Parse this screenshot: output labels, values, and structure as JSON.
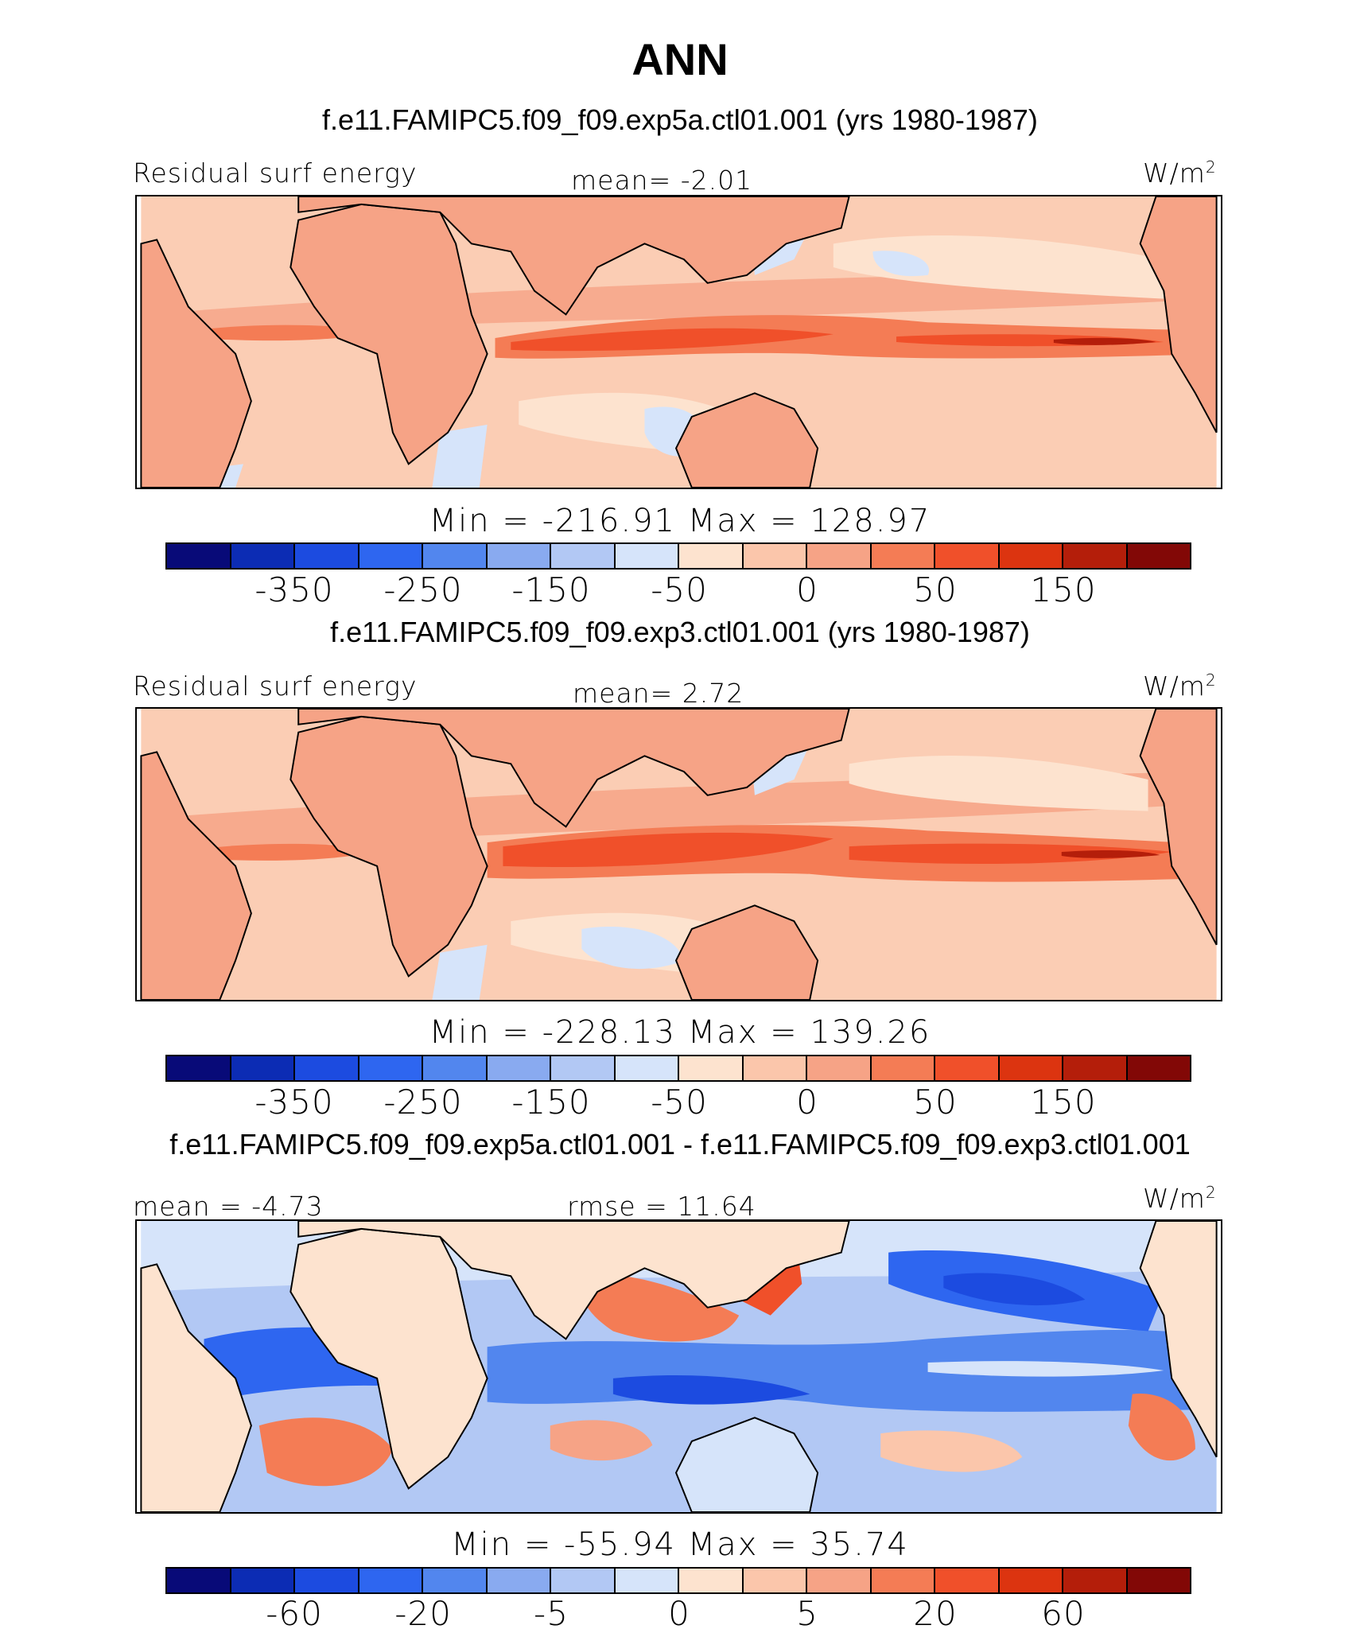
{
  "title": "ANN",
  "colors": {
    "colorbar": [
      "#080a78",
      "#0c2cb4",
      "#1c4be0",
      "#2e66f0",
      "#5286ee",
      "#89aaf0",
      "#b2c8f4",
      "#d6e4fa",
      "#fde3cf",
      "#fbc6ab",
      "#f6a386",
      "#f47c55",
      "#f0502a",
      "#dc3410",
      "#b41e0a",
      "#820806"
    ],
    "ocean_base": "#fbcdb4",
    "land_base": "#f6a386",
    "itcz": "#f0502a"
  },
  "panels": [
    {
      "subtitle": "f.e11.FAMIPC5.f09_f09.exp5a.ctl01.001 (yrs 1980-1987)",
      "left_label": "Residual surf energy",
      "center_label": "mean=   -2.01",
      "units": "W/m",
      "units_sup": "2",
      "minmax": "Min = -216.91 Max = 128.97",
      "ticks": [
        "-350",
        "-250",
        "-150",
        "-50",
        "0",
        "50",
        "150"
      ]
    },
    {
      "subtitle": "f.e11.FAMIPC5.f09_f09.exp3.ctl01.001 (yrs 1980-1987)",
      "left_label": "Residual surf energy",
      "center_label": "mean=   2.72",
      "units": "W/m",
      "units_sup": "2",
      "minmax": "Min = -228.13 Max = 139.26",
      "ticks": [
        "-350",
        "-250",
        "-150",
        "-50",
        "0",
        "50",
        "150"
      ]
    },
    {
      "subtitle": "f.e11.FAMIPC5.f09_f09.exp5a.ctl01.001 - f.e11.FAMIPC5.f09_f09.exp3.ctl01.001",
      "left_label": "mean =  -4.73",
      "center_label": "rmse =  11.64",
      "units": "W/m",
      "units_sup": "2",
      "minmax": "Min = -55.94 Max =  35.74",
      "ticks": [
        "-60",
        "-20",
        "-5",
        "0",
        "5",
        "20",
        "60"
      ]
    }
  ]
}
